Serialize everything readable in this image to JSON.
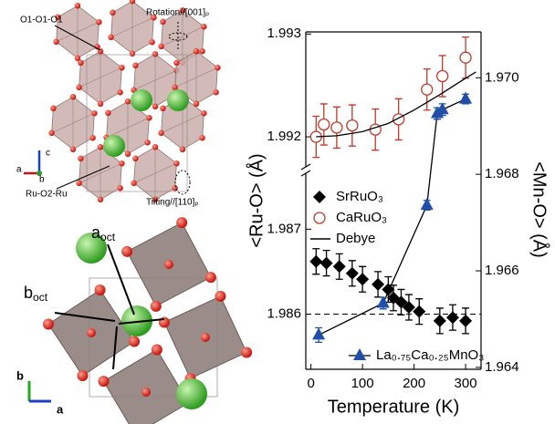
{
  "chart_data": {
    "type": "scatter",
    "xlabel": "Temperature (K)",
    "ylabel": "<Ru-O> (Å)",
    "y2label": "<Mn-O> (Å)",
    "xlim": [
      -10,
      330
    ],
    "xticks": [
      0,
      100,
      200,
      300
    ],
    "ylim_segments": [
      [
        1.98535,
        1.98768
      ],
      [
        1.99169,
        1.99302
      ]
    ],
    "yticks": [
      1.986,
      1.987,
      1.992,
      1.993
    ],
    "y2lim": [
      1.96396,
      1.97095
    ],
    "y2ticks": [
      1.964,
      1.966,
      1.968,
      {
        "value": 1.97,
        "label": "1.970"
      }
    ],
    "hline": 1.986,
    "series": [
      {
        "name": "SrRuO₃",
        "color": "#000000",
        "marker": "diamond",
        "line": false,
        "x": [
          10,
          30,
          55,
          80,
          100,
          130,
          150,
          160,
          175,
          190,
          210,
          250,
          275,
          300
        ],
        "values": [
          1.98662,
          1.9866,
          1.98656,
          1.98648,
          1.98641,
          1.98635,
          1.98629,
          1.98619,
          1.98614,
          1.98608,
          1.98603,
          1.98592,
          1.98596,
          1.98592
        ],
        "errors": [
          0.00015,
          0.00015,
          0.00015,
          0.00015,
          0.00015,
          0.00015,
          0.00015,
          0.00015,
          0.00015,
          0.00015,
          0.00015,
          0.00015,
          0.00015,
          0.00015
        ]
      },
      {
        "name": "CaRuO₃",
        "color": "#c0392b",
        "marker": "open-circle",
        "line": false,
        "x": [
          10,
          25,
          50,
          80,
          125,
          170,
          225,
          255,
          300
        ],
        "values": [
          1.992,
          1.99212,
          1.99209,
          1.99211,
          1.99207,
          1.99217,
          1.99246,
          1.99259,
          1.99277
        ],
        "errors": [
          0.0002,
          0.0002,
          0.0002,
          0.0002,
          0.0002,
          0.0002,
          0.0002,
          0.0002,
          0.0002
        ]
      },
      {
        "name": "Debye",
        "color": "#000000",
        "marker": "none",
        "line": true,
        "x": [
          10,
          50,
          100,
          150,
          200,
          250,
          300,
          320
        ],
        "values": [
          1.992,
          1.99201,
          1.99205,
          1.99213,
          1.99226,
          1.99241,
          1.99257,
          1.99263
        ]
      },
      {
        "name": "La₀.₇₅Ca₀.₂₅MnO₃",
        "color": "#1f4fa8",
        "marker": "triangle",
        "line": true,
        "axis": "y2",
        "x": [
          15,
          140,
          225,
          245,
          255,
          300
        ],
        "values": [
          1.96467,
          1.96533,
          1.96736,
          1.96926,
          1.96934,
          1.96956
        ],
        "errors": [
          0.00015,
          0.00012,
          0.0001,
          0.00012,
          0.00012,
          0.0001
        ]
      }
    ]
  },
  "structure": {
    "top_labels": [
      "O1-O1-O1",
      "Rotation//[001]ₚ",
      "Ru-O2-Ru",
      "Tilting//[110]ₚ"
    ],
    "top_axes": [
      "c",
      "a",
      "b"
    ],
    "a_oct": {
      "base": "a",
      "sub": "oct"
    },
    "b_oct": {
      "base": "b",
      "sub": "oct"
    },
    "bottom_axes": [
      "b",
      "a"
    ]
  }
}
